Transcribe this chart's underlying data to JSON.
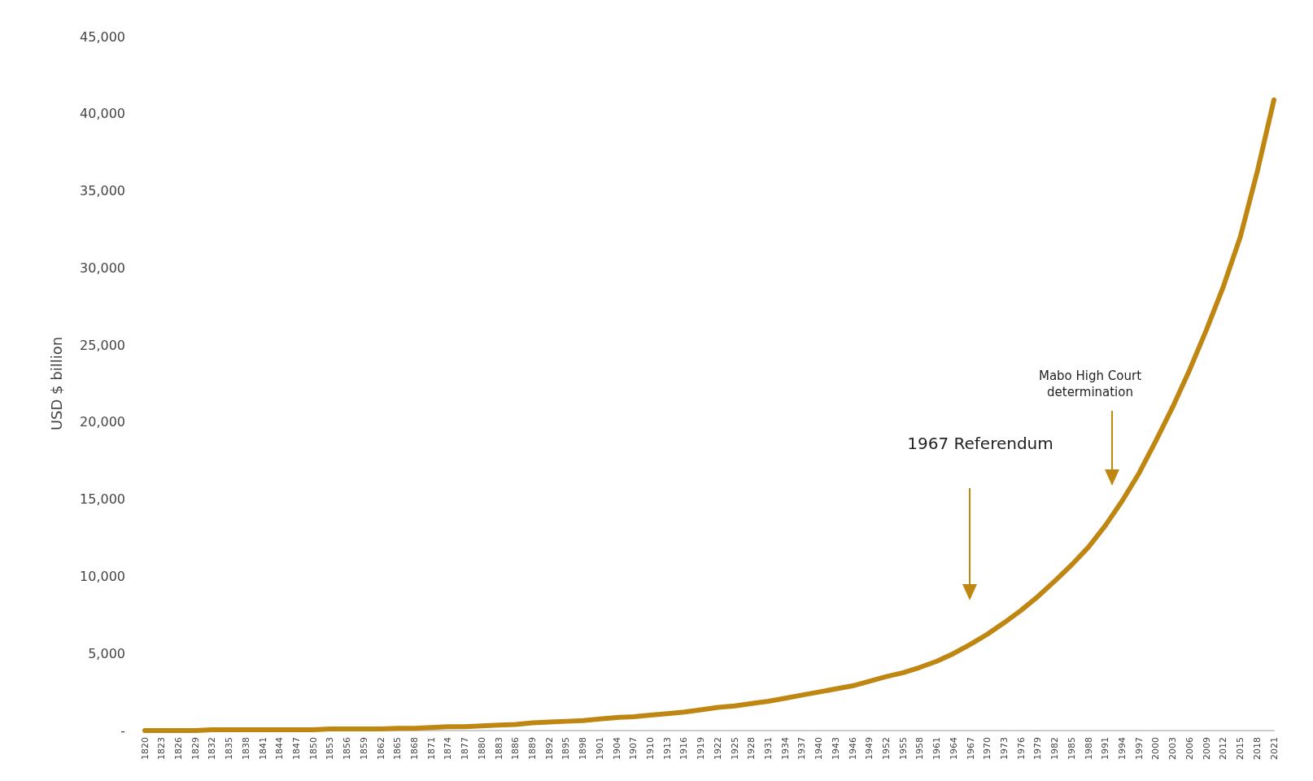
{
  "chart_data": {
    "type": "line",
    "ylabel": "USD $ billion",
    "categories": [
      "1820",
      "1823",
      "1826",
      "1829",
      "1832",
      "1835",
      "1838",
      "1841",
      "1844",
      "1847",
      "1850",
      "1853",
      "1856",
      "1859",
      "1862",
      "1865",
      "1868",
      "1871",
      "1874",
      "1877",
      "1880",
      "1883",
      "1886",
      "1889",
      "1892",
      "1895",
      "1898",
      "1901",
      "1904",
      "1907",
      "1910",
      "1913",
      "1916",
      "1919",
      "1922",
      "1925",
      "1928",
      "1931",
      "1934",
      "1937",
      "1940",
      "1943",
      "1946",
      "1949",
      "1952",
      "1955",
      "1958",
      "1961",
      "1964",
      "1967",
      "1970",
      "1973",
      "1976",
      "1979",
      "1982",
      "1985",
      "1988",
      "1991",
      "1994",
      "1997",
      "2000",
      "2003",
      "2006",
      "2009",
      "2012",
      "2015",
      "2018",
      "2021"
    ],
    "series": [
      {
        "color": "#bf8712",
        "values": [
          0,
          0,
          0,
          0,
          50,
          50,
          50,
          50,
          50,
          50,
          50,
          100,
          100,
          100,
          100,
          150,
          150,
          200,
          250,
          250,
          300,
          350,
          400,
          500,
          550,
          600,
          650,
          750,
          850,
          900,
          1000,
          1100,
          1200,
          1350,
          1500,
          1600,
          1750,
          1900,
          2100,
          2300,
          2500,
          2700,
          2900,
          3200,
          3500,
          3750,
          4100,
          4500,
          5000,
          5600,
          6250,
          7000,
          7800,
          8700,
          9700,
          10750,
          11900,
          13300,
          14900,
          16700,
          18800,
          21000,
          23400,
          26000,
          28800,
          32000,
          36200,
          40900
        ]
      }
    ],
    "ylim": [
      0,
      45000
    ],
    "yticks": [
      {
        "value": 0,
        "label": "-"
      },
      {
        "value": 5000,
        "label": "5,000"
      },
      {
        "value": 10000,
        "label": "10,000"
      },
      {
        "value": 15000,
        "label": "15,000"
      },
      {
        "value": 20000,
        "label": "20,000"
      },
      {
        "value": 25000,
        "label": "25,000"
      },
      {
        "value": 30000,
        "label": "30,000"
      },
      {
        "value": 35000,
        "label": "35,000"
      },
      {
        "value": 40000,
        "label": "40,000"
      },
      {
        "value": 45000,
        "label": "45,000"
      }
    ],
    "grid": false,
    "marker": "none",
    "line_style": "solid",
    "annotations": [
      "1967 Referendum",
      "Mabo High Court determination"
    ]
  }
}
